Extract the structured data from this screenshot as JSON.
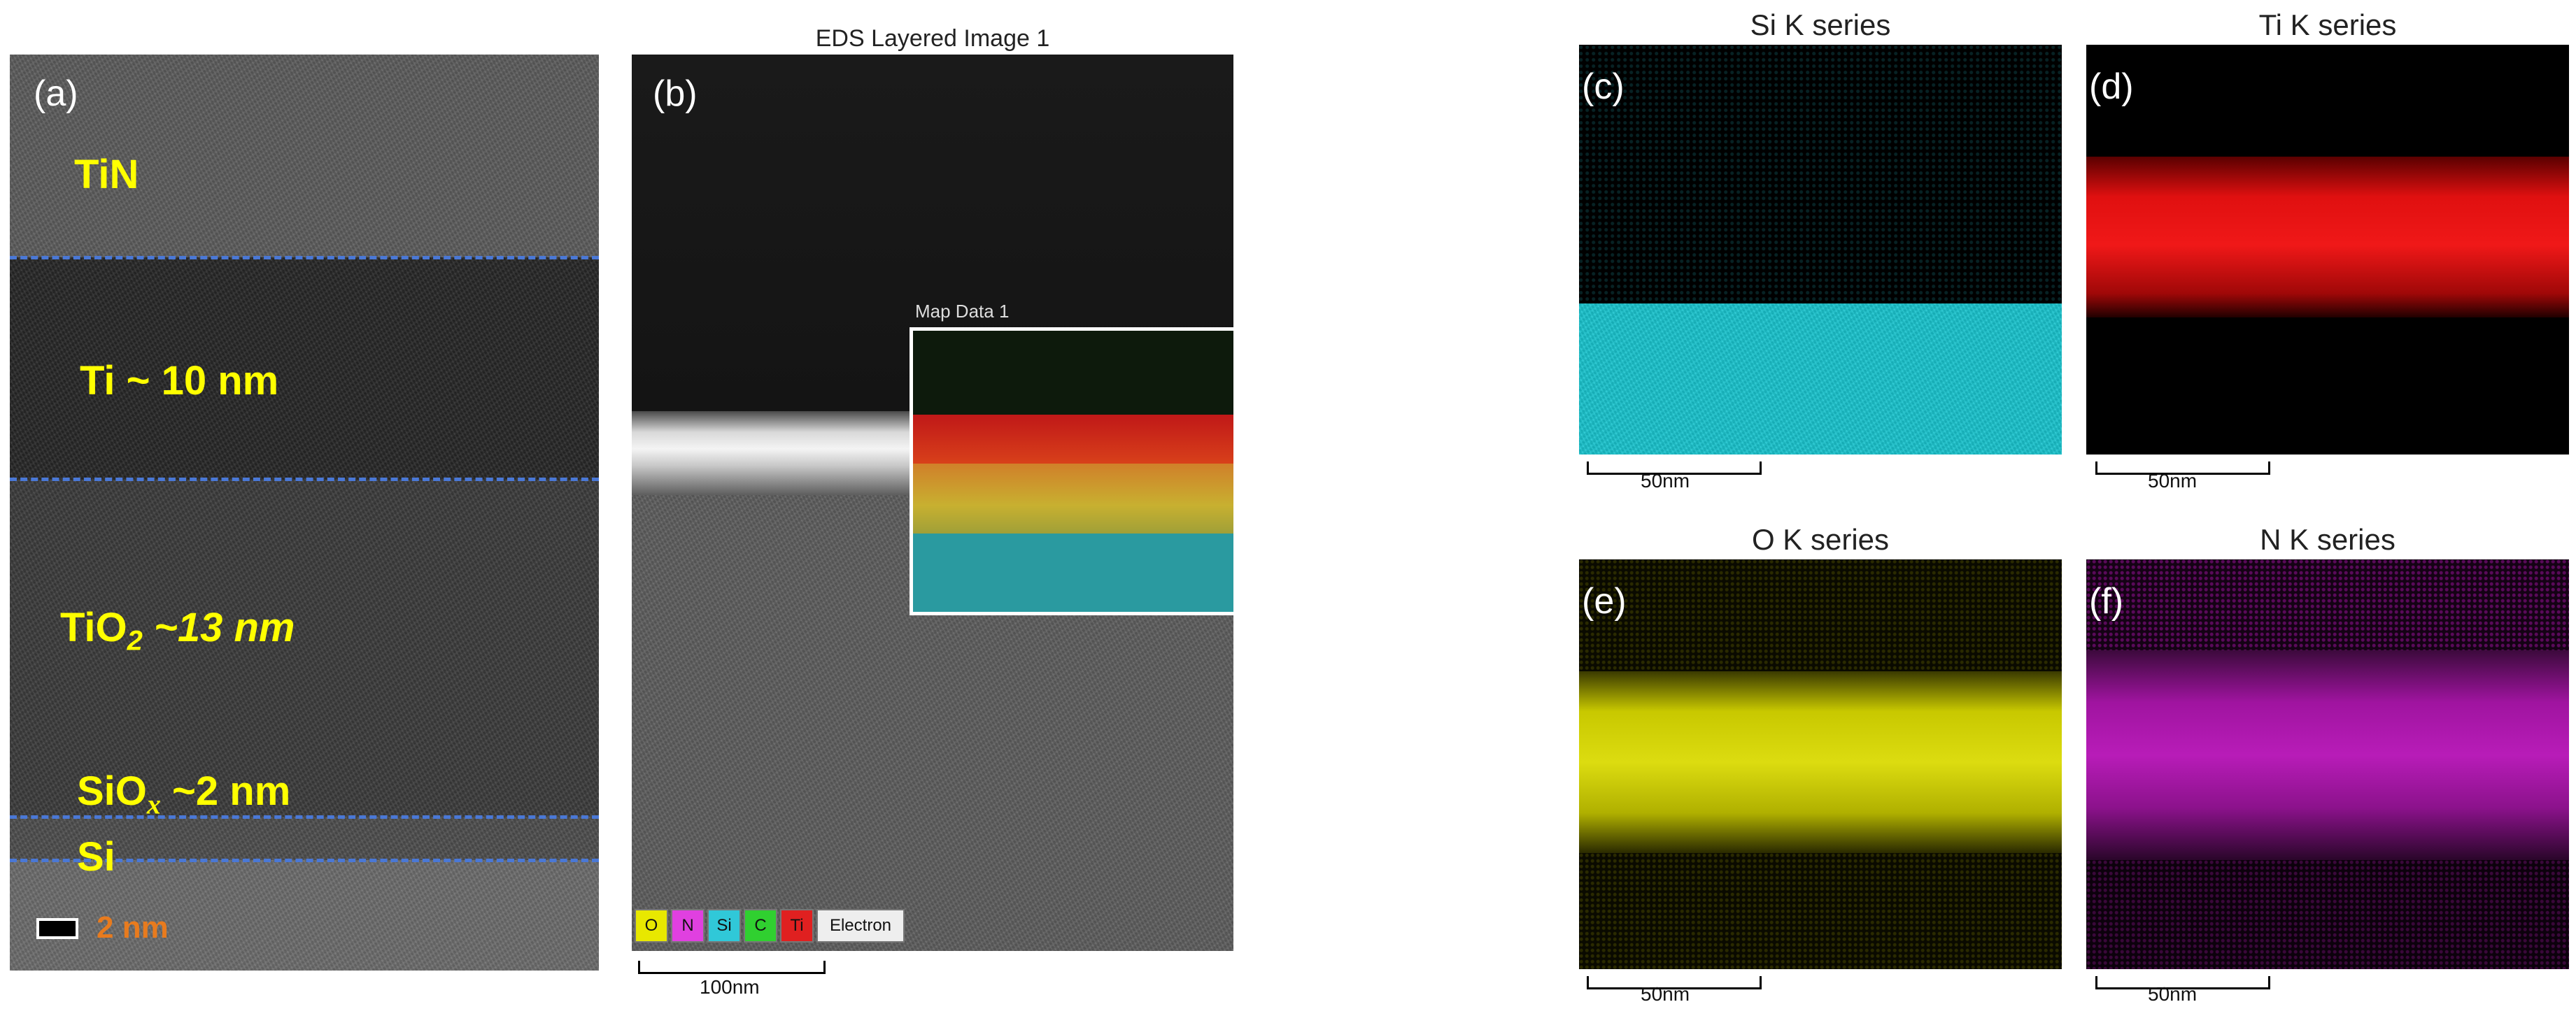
{
  "panel_a": {
    "label": "(a)",
    "layers": [
      {
        "name": "TiN"
      },
      {
        "name": "Ti ~ 10 nm"
      },
      {
        "main": "TiO",
        "sub": "2",
        "rest": " ~13 nm"
      },
      {
        "main": "SiO",
        "sub": "x",
        "rest": " ~2 nm"
      },
      {
        "name": "Si"
      }
    ],
    "scale_bar": "2 nm"
  },
  "panel_b": {
    "label": "(b)",
    "title": "EDS Layered Image 1",
    "map_label": "Map Data 1",
    "legend": [
      {
        "symbol": "O",
        "color": "#e8e800"
      },
      {
        "symbol": "N",
        "color": "#e040e0"
      },
      {
        "symbol": "Si",
        "color": "#30c8d8"
      },
      {
        "symbol": "C",
        "color": "#30d030"
      },
      {
        "symbol": "Ti",
        "color": "#e02020"
      }
    ],
    "legend_electron": "Electron",
    "scale_bar": "100nm"
  },
  "maps": [
    {
      "label": "(c)",
      "title": "Si K series",
      "scale_bar": "50nm",
      "color": "#19c8d2"
    },
    {
      "label": "(d)",
      "title": "Ti K series",
      "scale_bar": "50nm",
      "color": "#e01010"
    },
    {
      "label": "(e)",
      "title": "O K series",
      "scale_bar": "50nm",
      "color": "#d2d200"
    },
    {
      "label": "(f)",
      "title": "N K series",
      "scale_bar": "50nm",
      "color": "#b414b4"
    }
  ]
}
